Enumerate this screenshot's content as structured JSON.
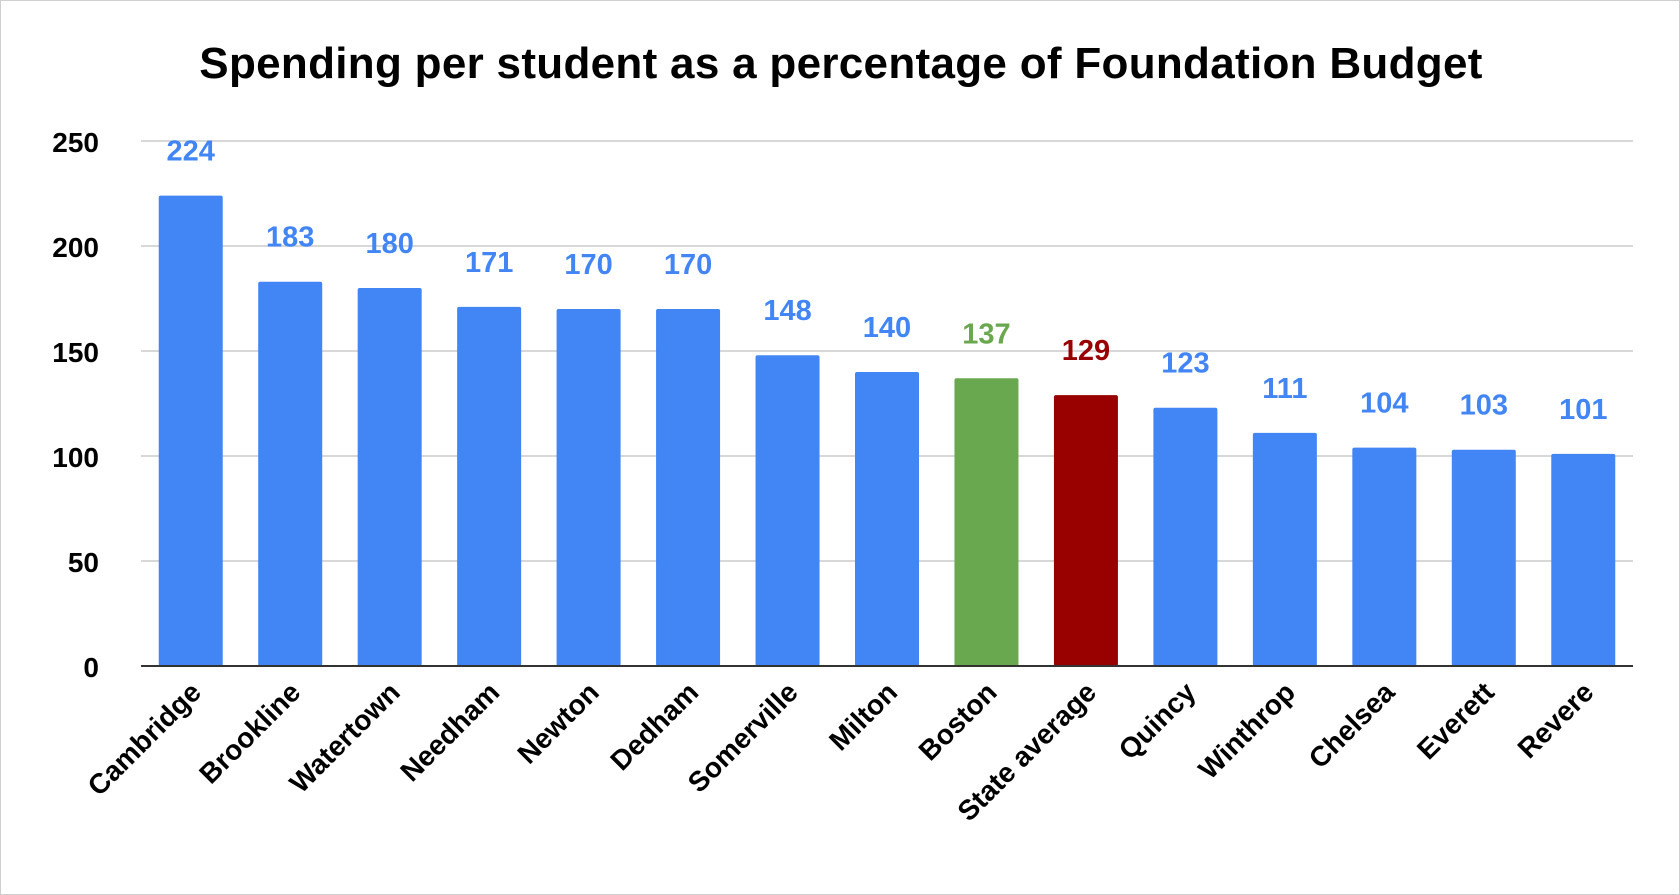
{
  "chart_data": {
    "type": "bar",
    "title": "Spending per student as a percentage of Foundation Budget",
    "xlabel": "",
    "ylabel": "",
    "ylim": [
      0,
      250
    ],
    "yticks": [
      0,
      50,
      100,
      150,
      200,
      250
    ],
    "grid": true,
    "legend": "none",
    "categories": [
      "Cambridge",
      "Brookline",
      "Watertown",
      "Needham",
      "Newton",
      "Dedham",
      "Somerville",
      "Milton",
      "Boston",
      "State average",
      "Quincy",
      "Winthrop",
      "Chelsea",
      "Everett",
      "Revere"
    ],
    "values": [
      224,
      183,
      180,
      171,
      170,
      170,
      148,
      140,
      137,
      129,
      123,
      111,
      104,
      103,
      101
    ],
    "bar_colors": [
      "#4285f4",
      "#4285f4",
      "#4285f4",
      "#4285f4",
      "#4285f4",
      "#4285f4",
      "#4285f4",
      "#4285f4",
      "#6aa84f",
      "#990000",
      "#4285f4",
      "#4285f4",
      "#4285f4",
      "#4285f4",
      "#4285f4"
    ],
    "label_colors": [
      "#4285f4",
      "#4285f4",
      "#4285f4",
      "#4285f4",
      "#4285f4",
      "#4285f4",
      "#4285f4",
      "#4285f4",
      "#6aa84f",
      "#990000",
      "#4285f4",
      "#4285f4",
      "#4285f4",
      "#4285f4",
      "#4285f4"
    ]
  }
}
